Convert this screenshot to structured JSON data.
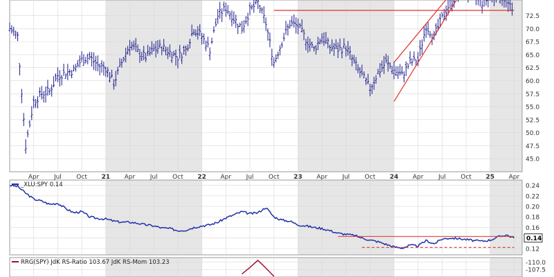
{
  "colors": {
    "price_bars": "#1a1a8c",
    "ratio_line": "#1f2fa8",
    "trendline": "#e03030",
    "shade": "#e6e6e6",
    "grid": "#d8d8d8",
    "rrg_ratio": "#a01030"
  },
  "chart_data": [
    {
      "type": "ohlc",
      "title": "",
      "xlabel": "",
      "ylabel": "",
      "ylim": [
        42.5,
        75.5
      ],
      "y_ticks": [
        "45.0",
        "47.5",
        "50.0",
        "52.5",
        "55.0",
        "57.5",
        "60.0",
        "62.5",
        "65.0",
        "67.5",
        "70.0",
        "72.5"
      ],
      "x_ticks": [
        {
          "label": "Apr",
          "month": "2020-04"
        },
        {
          "label": "Jul",
          "month": "2020-07"
        },
        {
          "label": "Oct",
          "month": "2020-10"
        },
        {
          "label": "21",
          "month": "2021-01",
          "bold": true
        },
        {
          "label": "Apr",
          "month": "2021-04"
        },
        {
          "label": "Jul",
          "month": "2021-07"
        },
        {
          "label": "Oct",
          "month": "2021-10"
        },
        {
          "label": "22",
          "month": "2022-01",
          "bold": true
        },
        {
          "label": "Apr",
          "month": "2022-04"
        },
        {
          "label": "Jul",
          "month": "2022-07"
        },
        {
          "label": "Oct",
          "month": "2022-10"
        },
        {
          "label": "23",
          "month": "2023-01",
          "bold": true
        },
        {
          "label": "Apr",
          "month": "2023-04"
        },
        {
          "label": "Jul",
          "month": "2023-07"
        },
        {
          "label": "Oct",
          "month": "2023-10"
        },
        {
          "label": "24",
          "month": "2024-01",
          "bold": true
        },
        {
          "label": "Apr",
          "month": "2024-04"
        },
        {
          "label": "Jul",
          "month": "2024-07"
        },
        {
          "label": "Oct",
          "month": "2024-10"
        },
        {
          "label": "25",
          "month": "2025-01",
          "bold": true
        },
        {
          "label": "Apr",
          "month": "2025-04"
        }
      ],
      "shaded_years": [
        "2021",
        "2023",
        "2025"
      ],
      "close_path": [
        [
          "2020-01",
          70.0
        ],
        [
          "2020-02",
          68.5
        ],
        [
          "2020-03",
          47.5
        ],
        [
          "2020-04",
          56.0
        ],
        [
          "2020-05",
          57.5
        ],
        [
          "2020-06",
          58.0
        ],
        [
          "2020-07",
          61.0
        ],
        [
          "2020-08",
          61.5
        ],
        [
          "2020-09",
          62.0
        ],
        [
          "2020-10",
          64.0
        ],
        [
          "2020-11",
          64.5
        ],
        [
          "2020-12",
          63.0
        ],
        [
          "2021-01",
          62.5
        ],
        [
          "2021-02",
          59.5
        ],
        [
          "2021-03",
          63.5
        ],
        [
          "2021-04",
          67.0
        ],
        [
          "2021-05",
          65.5
        ],
        [
          "2021-06",
          64.5
        ],
        [
          "2021-07",
          66.0
        ],
        [
          "2021-08",
          66.5
        ],
        [
          "2021-09",
          65.5
        ],
        [
          "2021-10",
          64.5
        ],
        [
          "2021-11",
          66.0
        ],
        [
          "2021-12",
          70.0
        ],
        [
          "2022-01",
          68.5
        ],
        [
          "2022-02",
          66.0
        ],
        [
          "2022-03",
          72.5
        ],
        [
          "2022-04",
          74.0
        ],
        [
          "2022-05",
          72.0
        ],
        [
          "2022-06",
          70.0
        ],
        [
          "2022-07",
          73.5
        ],
        [
          "2022-08",
          75.0
        ],
        [
          "2022-09",
          71.0
        ],
        [
          "2022-10",
          63.5
        ],
        [
          "2022-11",
          67.5
        ],
        [
          "2022-12",
          71.0
        ],
        [
          "2023-01",
          70.5
        ],
        [
          "2023-02",
          68.0
        ],
        [
          "2023-03",
          66.0
        ],
        [
          "2023-04",
          68.5
        ],
        [
          "2023-05",
          66.5
        ],
        [
          "2023-06",
          66.0
        ],
        [
          "2023-07",
          66.5
        ],
        [
          "2023-08",
          63.5
        ],
        [
          "2023-09",
          61.0
        ],
        [
          "2023-10",
          58.5
        ],
        [
          "2023-11",
          61.5
        ],
        [
          "2023-12",
          63.5
        ],
        [
          "2024-01",
          62.0
        ],
        [
          "2024-02",
          61.0
        ],
        [
          "2024-03",
          63.5
        ],
        [
          "2024-04",
          64.0
        ],
        [
          "2024-05",
          70.5
        ],
        [
          "2024-06",
          68.5
        ],
        [
          "2024-07",
          72.0
        ],
        [
          "2024-08",
          75.0
        ],
        [
          "2024-09",
          76.5
        ],
        [
          "2024-10",
          77.0
        ],
        [
          "2024-11",
          76.5
        ],
        [
          "2024-12",
          75.0
        ],
        [
          "2025-01",
          76.0
        ],
        [
          "2025-02",
          76.5
        ],
        [
          "2025-03",
          75.5
        ],
        [
          "2025-04",
          72.5
        ]
      ],
      "horizontal_line": {
        "value": 73.5,
        "from": "2022-10",
        "to": "2025-04"
      },
      "channel": [
        {
          "from": [
            "2024-01",
            63.5
          ],
          "to": [
            "2024-08",
            76.5
          ]
        },
        {
          "from": [
            "2024-01",
            56.0
          ],
          "to": [
            "2024-09",
            76.0
          ]
        }
      ]
    },
    {
      "type": "line",
      "title": "_XLU:SPY 0.14",
      "legend": "_XLU:SPY 0.14",
      "xlabel": "",
      "ylabel": "",
      "ylim": [
        0.108,
        0.25
      ],
      "y_ticks": [
        "0.24",
        "0.22",
        "0.20",
        "0.18",
        "0.16",
        "0.14",
        "0.12"
      ],
      "last_value_label": "0.14",
      "series": [
        {
          "name": "_XLU:SPY",
          "points": [
            [
              "2020-01",
              0.24
            ],
            [
              "2020-02",
              0.238
            ],
            [
              "2020-03",
              0.225
            ],
            [
              "2020-04",
              0.214
            ],
            [
              "2020-05",
              0.21
            ],
            [
              "2020-06",
              0.204
            ],
            [
              "2020-07",
              0.206
            ],
            [
              "2020-08",
              0.196
            ],
            [
              "2020-09",
              0.188
            ],
            [
              "2020-10",
              0.19
            ],
            [
              "2020-11",
              0.18
            ],
            [
              "2020-12",
              0.177
            ],
            [
              "2021-01",
              0.176
            ],
            [
              "2021-02",
              0.172
            ],
            [
              "2021-03",
              0.17
            ],
            [
              "2021-04",
              0.17
            ],
            [
              "2021-05",
              0.168
            ],
            [
              "2021-06",
              0.165
            ],
            [
              "2021-07",
              0.163
            ],
            [
              "2021-08",
              0.159
            ],
            [
              "2021-09",
              0.158
            ],
            [
              "2021-10",
              0.154
            ],
            [
              "2021-11",
              0.155
            ],
            [
              "2021-12",
              0.16
            ],
            [
              "2022-01",
              0.163
            ],
            [
              "2022-02",
              0.165
            ],
            [
              "2022-03",
              0.17
            ],
            [
              "2022-04",
              0.178
            ],
            [
              "2022-05",
              0.184
            ],
            [
              "2022-06",
              0.19
            ],
            [
              "2022-07",
              0.186
            ],
            [
              "2022-08",
              0.188
            ],
            [
              "2022-09",
              0.198
            ],
            [
              "2022-10",
              0.18
            ],
            [
              "2022-11",
              0.174
            ],
            [
              "2022-12",
              0.172
            ],
            [
              "2023-01",
              0.165
            ],
            [
              "2023-02",
              0.163
            ],
            [
              "2023-03",
              0.16
            ],
            [
              "2023-04",
              0.158
            ],
            [
              "2023-05",
              0.154
            ],
            [
              "2023-06",
              0.149
            ],
            [
              "2023-07",
              0.147
            ],
            [
              "2023-08",
              0.145
            ],
            [
              "2023-09",
              0.14
            ],
            [
              "2023-10",
              0.136
            ],
            [
              "2023-11",
              0.133
            ],
            [
              "2023-12",
              0.128
            ],
            [
              "2024-01",
              0.123
            ],
            [
              "2024-02",
              0.121
            ],
            [
              "2024-03",
              0.126
            ],
            [
              "2024-04",
              0.125
            ],
            [
              "2024-05",
              0.135
            ],
            [
              "2024-06",
              0.129
            ],
            [
              "2024-07",
              0.138
            ],
            [
              "2024-08",
              0.14
            ],
            [
              "2024-09",
              0.139
            ],
            [
              "2024-10",
              0.137
            ],
            [
              "2024-11",
              0.135
            ],
            [
              "2024-12",
              0.134
            ],
            [
              "2025-01",
              0.136
            ],
            [
              "2025-02",
              0.142
            ],
            [
              "2025-03",
              0.146
            ],
            [
              "2025-04",
              0.14
            ]
          ]
        }
      ],
      "horizontal_lines": [
        {
          "value": 0.143,
          "from": "2023-06",
          "to": "2025-04",
          "style": "solid"
        },
        {
          "value": 0.122,
          "from": "2023-09",
          "to": "2025-04",
          "style": "dashed"
        }
      ]
    },
    {
      "type": "line",
      "title": "RRG(SPY) JdK RS-Ratio 103.67 JdK RS-Mom 103.23",
      "legend": "RRG(SPY) JdK RS-Ratio 103.67 JdK RS-Mom 103.23",
      "xlabel": "",
      "ylabel": "",
      "ylim": [
        105.0,
        111.5
      ],
      "y_ticks": [
        "110.0",
        "107.5"
      ],
      "series": [
        {
          "name": "JdK RS-Ratio",
          "points": [
            [
              "2022-06",
              106.0
            ],
            [
              "2022-07",
              108.2
            ],
            [
              "2022-08",
              110.6
            ],
            [
              "2022-09",
              108.0
            ],
            [
              "2022-10",
              105.2
            ]
          ]
        }
      ]
    }
  ]
}
